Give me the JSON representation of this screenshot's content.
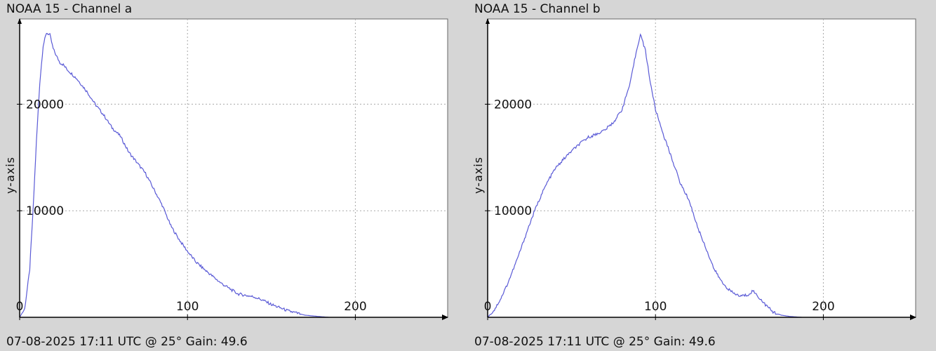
{
  "panels": [
    {
      "title": "NOAA 15 - Channel a",
      "footer": "07-08-2025 17:11 UTC @ 25° Gain: 49.6"
    },
    {
      "title": "NOAA 15 - Channel b",
      "footer": "07-08-2025 17:11 UTC @ 25° Gain: 49.6"
    }
  ],
  "colors": {
    "background": "#d6d6d6",
    "plot_background": "#ffffff",
    "line": "#5a5ad6",
    "grid": "#a8a8a8",
    "axis": "#000000"
  },
  "chart_data": [
    {
      "type": "line",
      "title": "NOAA 15 - Channel a",
      "xlabel": "",
      "ylabel": "y-axis",
      "xlim": [
        0,
        255
      ],
      "ylim": [
        0,
        28000
      ],
      "xticks": [
        0,
        100,
        200
      ],
      "yticks": [
        10000,
        20000
      ],
      "grid": true,
      "series": [
        {
          "x": [
            0,
            3,
            6,
            8,
            10,
            12,
            14,
            16,
            18,
            20,
            22,
            24,
            26,
            28,
            30,
            32,
            34,
            36,
            40,
            45,
            50,
            55,
            60,
            65,
            70,
            75,
            80,
            85,
            90,
            95,
            100,
            105,
            110,
            120,
            130,
            140,
            145,
            150,
            160,
            170,
            180,
            184
          ],
          "y": [
            0,
            800,
            4500,
            10000,
            16500,
            22000,
            25500,
            26700,
            26500,
            25200,
            24500,
            23900,
            23700,
            23300,
            23000,
            22700,
            22400,
            22000,
            21200,
            20000,
            19000,
            17800,
            17000,
            15500,
            14500,
            13500,
            12000,
            10500,
            8600,
            7300,
            6200,
            5200,
            4500,
            3200,
            2200,
            1900,
            1600,
            1200,
            600,
            200,
            50,
            0
          ]
        }
      ]
    },
    {
      "type": "line",
      "title": "NOAA 15 - Channel b",
      "xlabel": "",
      "ylabel": "y-axis",
      "xlim": [
        0,
        255
      ],
      "ylim": [
        0,
        28000
      ],
      "xticks": [
        0,
        100,
        200
      ],
      "yticks": [
        10000,
        20000
      ],
      "grid": true,
      "series": [
        {
          "x": [
            0,
            4,
            8,
            12,
            16,
            20,
            24,
            28,
            32,
            36,
            40,
            45,
            50,
            55,
            60,
            65,
            70,
            75,
            80,
            85,
            88,
            91,
            94,
            97,
            100,
            105,
            110,
            115,
            120,
            125,
            130,
            135,
            140,
            145,
            150,
            155,
            158,
            162,
            166,
            170,
            175,
            180,
            187
          ],
          "y": [
            0,
            700,
            1800,
            3200,
            4800,
            6500,
            8300,
            10000,
            11500,
            12800,
            13900,
            14800,
            15600,
            16300,
            16900,
            17200,
            17600,
            18300,
            19500,
            22000,
            24500,
            26600,
            25000,
            22000,
            19500,
            17000,
            14800,
            12500,
            11000,
            8500,
            6500,
            4500,
            3200,
            2400,
            2000,
            2100,
            2500,
            1800,
            1100,
            500,
            200,
            80,
            0
          ]
        }
      ]
    }
  ]
}
